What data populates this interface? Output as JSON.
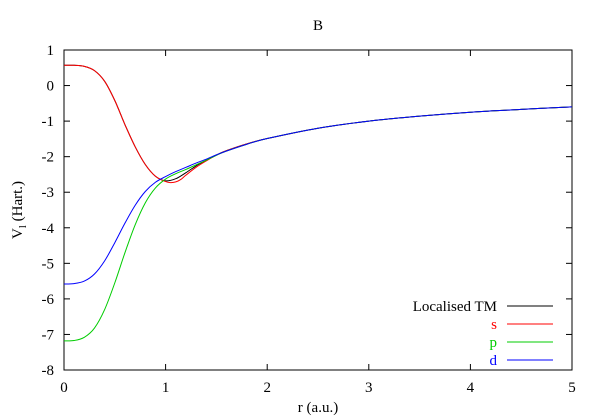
{
  "chart_data": {
    "type": "line",
    "title": "B",
    "xlabel": "r (a.u.)",
    "ylabel": "V",
    "ylabel_subscript": "l",
    "ylabel_suffix": " (Hart.)",
    "xlim": [
      0,
      5
    ],
    "ylim": [
      -8,
      1
    ],
    "xticks": [
      0,
      1,
      2,
      3,
      4,
      5
    ],
    "yticks": [
      -8,
      -7,
      -6,
      -5,
      -4,
      -3,
      -2,
      -1,
      0,
      1
    ],
    "grid": false,
    "legend_position": "bottom-right",
    "series": [
      {
        "name": "Localised TM",
        "color": "#000000",
        "x": [
          0,
          0.1,
          0.2,
          0.3,
          0.4,
          0.5,
          0.6,
          0.7,
          0.8,
          0.9,
          1.0,
          1.1,
          1.2,
          1.3,
          1.4,
          1.5,
          1.6,
          1.8,
          2.0,
          2.5,
          3.0,
          3.5,
          4.0,
          4.5,
          5.0
        ],
        "y": [
          0.57,
          0.57,
          0.54,
          0.42,
          0.12,
          -0.42,
          -1.1,
          -1.72,
          -2.22,
          -2.55,
          -2.68,
          -2.62,
          -2.45,
          -2.26,
          -2.1,
          -1.95,
          -1.83,
          -1.64,
          -1.49,
          -1.2,
          -1.0,
          -0.86,
          -0.75,
          -0.67,
          -0.6
        ]
      },
      {
        "name": "s",
        "color": "#ff0000",
        "x": [
          0,
          0.1,
          0.2,
          0.3,
          0.4,
          0.5,
          0.6,
          0.7,
          0.8,
          0.9,
          1.0,
          1.05,
          1.1,
          1.15,
          1.2,
          1.3,
          1.4,
          1.5,
          1.6,
          1.8,
          2.0,
          2.5,
          3.0,
          3.5,
          4.0,
          4.5,
          5.0
        ],
        "y": [
          0.57,
          0.57,
          0.54,
          0.42,
          0.12,
          -0.42,
          -1.1,
          -1.72,
          -2.22,
          -2.55,
          -2.7,
          -2.73,
          -2.71,
          -2.64,
          -2.52,
          -2.3,
          -2.12,
          -1.96,
          -1.83,
          -1.64,
          -1.49,
          -1.2,
          -1.0,
          -0.86,
          -0.75,
          -0.67,
          -0.6
        ]
      },
      {
        "name": "p",
        "color": "#00cc00",
        "x": [
          0,
          0.1,
          0.2,
          0.3,
          0.4,
          0.5,
          0.6,
          0.7,
          0.8,
          0.9,
          1.0,
          1.1,
          1.2,
          1.3,
          1.4,
          1.5,
          1.6,
          1.8,
          2.0,
          2.5,
          3.0,
          3.5,
          4.0,
          4.5,
          5.0
        ],
        "y": [
          -7.18,
          -7.17,
          -7.08,
          -6.82,
          -6.3,
          -5.55,
          -4.7,
          -3.92,
          -3.3,
          -2.88,
          -2.63,
          -2.48,
          -2.36,
          -2.23,
          -2.1,
          -1.96,
          -1.84,
          -1.65,
          -1.49,
          -1.2,
          -1.0,
          -0.86,
          -0.75,
          -0.67,
          -0.6
        ]
      },
      {
        "name": "d",
        "color": "#0000ff",
        "x": [
          0,
          0.1,
          0.2,
          0.3,
          0.4,
          0.5,
          0.6,
          0.7,
          0.8,
          0.9,
          1.0,
          1.1,
          1.2,
          1.3,
          1.4,
          1.5,
          1.6,
          1.8,
          2.0,
          2.5,
          3.0,
          3.5,
          4.0,
          4.5,
          5.0
        ],
        "y": [
          -5.58,
          -5.57,
          -5.5,
          -5.3,
          -4.93,
          -4.42,
          -3.87,
          -3.37,
          -2.98,
          -2.72,
          -2.56,
          -2.42,
          -2.3,
          -2.18,
          -2.07,
          -1.95,
          -1.84,
          -1.65,
          -1.49,
          -1.2,
          -1.0,
          -0.86,
          -0.75,
          -0.67,
          -0.6
        ]
      }
    ]
  }
}
